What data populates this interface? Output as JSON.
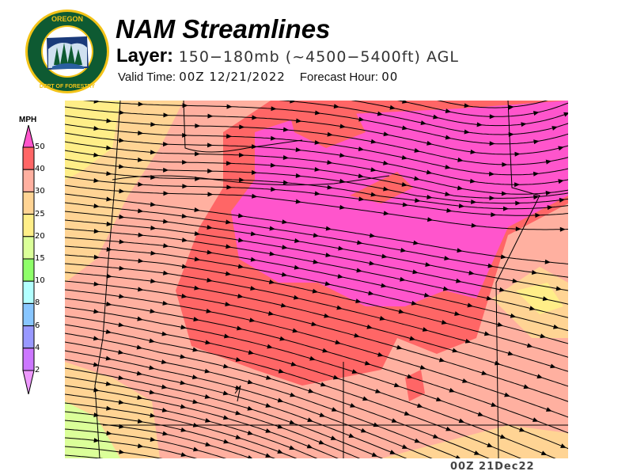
{
  "header": {
    "title": "NAM Streamlines",
    "layer_label": "Layer:",
    "layer_value": "150−180mb (~4500−5400ft) AGL",
    "valid_label": "Valid Time:",
    "valid_value": "00Z 12/21/2022",
    "forecast_label": "Forecast Hour:",
    "forecast_value": "00"
  },
  "logo": {
    "text": "OREGON DEPARTMENT OF FORESTRY",
    "colors": {
      "ring": "#0e5a32",
      "gold": "#f2c318"
    }
  },
  "legend": {
    "unit": "MPH",
    "bins": [
      {
        "label": "50",
        "color": "#ff6666"
      },
      {
        "label": "40",
        "color": "#ffb0a0"
      },
      {
        "label": "30",
        "color": "#ffd494"
      },
      {
        "label": "25",
        "color": "#ffee88"
      },
      {
        "label": "20",
        "color": "#dbff99"
      },
      {
        "label": "15",
        "color": "#8fff6a"
      },
      {
        "label": "10",
        "color": "#b2ffff"
      },
      {
        "label": "8",
        "color": "#88c6ff"
      },
      {
        "label": "6",
        "color": "#9999ff"
      },
      {
        "label": "4",
        "color": "#cc77ff"
      },
      {
        "label": "2",
        "color": ""
      }
    ],
    "over_color": "#ff55cc",
    "under_color": "#ee99ff"
  },
  "map": {
    "stamp": "00Z 21Dec22",
    "streamline_color": "#000000"
  }
}
